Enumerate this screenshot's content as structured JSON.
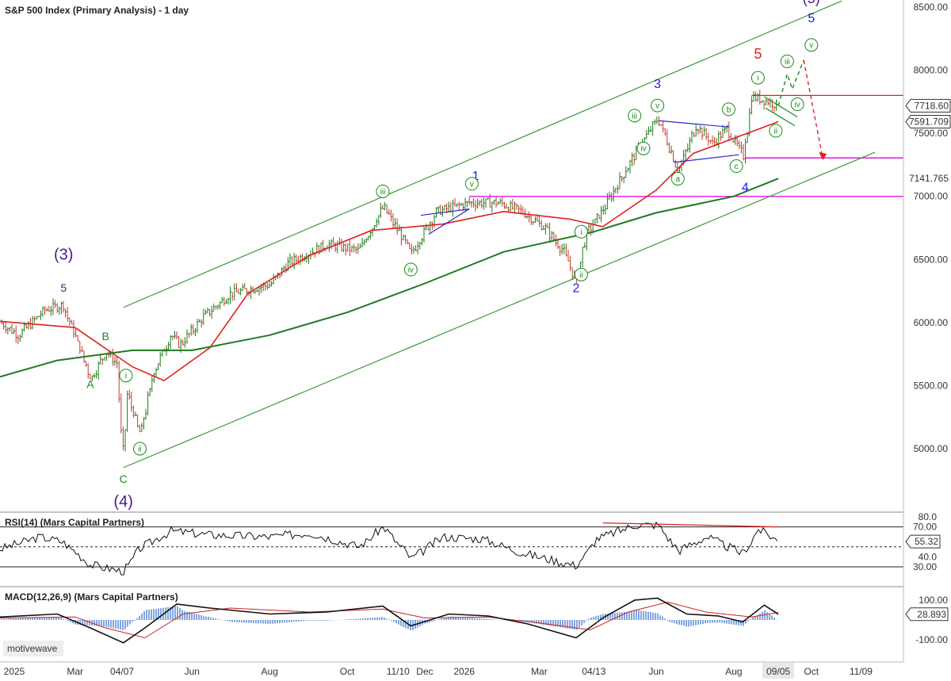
{
  "chart_title": "S&P 500 Index (Primary Analysis) - 1 day",
  "watermark": "motivewave",
  "colors": {
    "up_bar": "#1a7a1a",
    "down_bar": "#c0392b",
    "ma_fast": "#e02020",
    "ma_slow": "#1f7a1f",
    "channel": "#3a9a3a",
    "wave_green": "#1a8a1a",
    "wave_blue": "#1a1aee",
    "wave_red": "#e02020",
    "wave_purple": "#4b1a8a",
    "magenta": "#e000e0",
    "triangle_blue": "#2a2ad0"
  },
  "chart_data": [
    {
      "type": "ohlc",
      "title": "S&P 500 Index (Primary Analysis) - 1 day",
      "ylim": [
        4650,
        8550
      ],
      "yticks": [
        "8500.00",
        "8000.00",
        "7500.00",
        "7000.00",
        "6500.00",
        "6000.00",
        "5500.00",
        "5000.00"
      ],
      "xticks": [
        "2025",
        "Mar",
        "04/07",
        "Jun",
        "Aug",
        "Oct",
        "11/10",
        "Dec",
        "2026",
        "Mar",
        "04/13",
        "Jun",
        "Aug",
        "09/05",
        "Oct",
        "11/09"
      ],
      "price_tags": [
        "7718.60",
        "7591.709",
        "7141.765"
      ],
      "price_path": [
        [
          "2025-01-01",
          6000
        ],
        [
          "2025-01-15",
          5900
        ],
        [
          "2025-02-05",
          6100
        ],
        [
          "2025-02-19",
          6140
        ],
        [
          "2025-03-05",
          5780
        ],
        [
          "2025-03-13",
          5550
        ],
        [
          "2025-03-25",
          5770
        ],
        [
          "2025-04-02",
          5680
        ],
        [
          "2025-04-08",
          4850
        ],
        [
          "2025-04-10",
          5460
        ],
        [
          "2025-04-21",
          5100
        ],
        [
          "2025-05-01",
          5600
        ],
        [
          "2025-05-15",
          5900
        ],
        [
          "2025-05-22",
          5820
        ],
        [
          "2025-06-10",
          6050
        ],
        [
          "2025-07-01",
          6230
        ],
        [
          "2025-08-01",
          6300
        ],
        [
          "2025-08-15",
          6470
        ],
        [
          "2025-09-15",
          6620
        ],
        [
          "2025-10-10",
          6570
        ],
        [
          "2025-10-29",
          6920
        ],
        [
          "2025-11-20",
          6550
        ],
        [
          "2025-12-10",
          6880
        ],
        [
          "2026-01-05",
          6950
        ],
        [
          "2026-01-28",
          6950
        ],
        [
          "2026-02-15",
          6880
        ],
        [
          "2026-03-05",
          6750
        ],
        [
          "2026-03-20",
          6560
        ],
        [
          "2026-03-30",
          6320
        ],
        [
          "2026-04-06",
          6690
        ],
        [
          "2026-04-20",
          6900
        ],
        [
          "2026-05-10",
          7250
        ],
        [
          "2026-05-25",
          7500
        ],
        [
          "2026-06-02",
          7620
        ],
        [
          "2026-06-18",
          7200
        ],
        [
          "2026-07-02",
          7560
        ],
        [
          "2026-07-15",
          7420
        ],
        [
          "2026-07-26",
          7540
        ],
        [
          "2026-08-08",
          7320
        ],
        [
          "2026-08-15",
          7790
        ],
        [
          "2026-08-25",
          7760
        ],
        [
          "2026-09-05",
          7718.6
        ]
      ],
      "projection": [
        [
          "2026-09-05",
          7718.6
        ],
        [
          "2026-09-12",
          7970
        ],
        [
          "2026-09-16",
          7850
        ],
        [
          "2026-09-25",
          8080
        ],
        [
          "2026-10-10",
          7300
        ]
      ],
      "moving_averages": [
        {
          "values": [
            [
              "2025-01-01",
              6010
            ],
            [
              "2025-03-01",
              5960
            ],
            [
              "2025-04-15",
              5650
            ],
            [
              "2025-05-10",
              5540
            ],
            [
              "2025-06-15",
              5800
            ],
            [
              "2025-07-15",
              6230
            ],
            [
              "2025-09-01",
              6530
            ],
            [
              "2025-10-20",
              6730
            ],
            [
              "2025-12-15",
              6780
            ],
            [
              "2026-02-01",
              6880
            ],
            [
              "2026-03-25",
              6820
            ],
            [
              "2026-04-20",
              6760
            ],
            [
              "2026-06-01",
              7050
            ],
            [
              "2026-06-30",
              7340
            ],
            [
              "2026-08-01",
              7460
            ],
            [
              "2026-09-05",
              7591.709
            ]
          ]
        },
        {
          "values": [
            [
              "2025-01-01",
              5570
            ],
            [
              "2025-02-15",
              5700
            ],
            [
              "2025-04-15",
              5780
            ],
            [
              "2025-06-01",
              5780
            ],
            [
              "2025-08-01",
              5900
            ],
            [
              "2025-10-01",
              6080
            ],
            [
              "2025-12-01",
              6310
            ],
            [
              "2026-02-01",
              6560
            ],
            [
              "2026-04-13",
              6720
            ],
            [
              "2026-06-01",
              6870
            ],
            [
              "2026-08-01",
              7000
            ],
            [
              "2026-09-05",
              7141.765
            ]
          ]
        }
      ],
      "channel": {
        "upper": [
          [
            "2025-04-08",
            6120
          ],
          [
            "2026-10-25",
            8550
          ]
        ],
        "lower": [
          [
            "2025-04-08",
            4850
          ],
          [
            "2026-11-20",
            7350
          ]
        ]
      },
      "levels": [
        {
          "y": 7800,
          "from": "2026-08-15",
          "color": "red"
        },
        {
          "y": 7305,
          "from": "2026-08-10",
          "color": "magenta"
        },
        {
          "y": 7000,
          "from": "2026-01-05",
          "color": "magenta"
        }
      ],
      "wave_labels": [
        {
          "text": "(3)",
          "d": "2025-02-20",
          "y": 6500,
          "color": "purple",
          "size": 20
        },
        {
          "text": "5",
          "d": "2025-02-20",
          "y": 6245,
          "color": "purple",
          "size": 14
        },
        {
          "text": "B",
          "d": "2025-03-25",
          "y": 5860,
          "color": "green",
          "size": 14
        },
        {
          "text": "A",
          "d": "2025-03-13",
          "y": 5480,
          "color": "green",
          "size": 14
        },
        {
          "text": "C",
          "d": "2025-04-08",
          "y": 4730,
          "color": "green",
          "size": 14
        },
        {
          "text": "(4)",
          "d": "2025-04-08",
          "y": 4540,
          "color": "purple",
          "size": 20
        },
        {
          "text": "1",
          "d": "2026-01-10",
          "y": 7130,
          "color": "blue",
          "size": 16
        },
        {
          "text": "2",
          "d": "2026-03-30",
          "y": 6240,
          "color": "blue",
          "size": 16
        },
        {
          "text": "3",
          "d": "2026-06-02",
          "y": 7860,
          "color": "blue",
          "size": 16
        },
        {
          "text": "4",
          "d": "2026-08-10",
          "y": 7040,
          "color": "blue",
          "size": 16
        },
        {
          "text": "5",
          "d": "2026-08-20",
          "y": 8090,
          "color": "red",
          "size": 18
        },
        {
          "text": "5",
          "d": "2026-10-01",
          "y": 8380,
          "color": "blue",
          "size": 16
        },
        {
          "text": "(5)",
          "d": "2026-10-01",
          "y": 8530,
          "color": "purple",
          "size": 18
        }
      ],
      "circle_labels": [
        {
          "text": "i",
          "d": "2025-04-10",
          "y": 5580
        },
        {
          "text": "ii",
          "d": "2025-04-21",
          "y": 5000
        },
        {
          "text": "iii",
          "d": "2025-10-29",
          "y": 7040
        },
        {
          "text": "iv",
          "d": "2025-11-20",
          "y": 6420
        },
        {
          "text": "v",
          "d": "2026-01-07",
          "y": 7100
        },
        {
          "text": "i",
          "d": "2026-04-03",
          "y": 6720
        },
        {
          "text": "ii",
          "d": "2026-04-03",
          "y": 6380
        },
        {
          "text": "iii",
          "d": "2026-05-15",
          "y": 7640
        },
        {
          "text": "iv",
          "d": "2026-05-22",
          "y": 7380
        },
        {
          "text": "v",
          "d": "2026-06-02",
          "y": 7720
        },
        {
          "text": "a",
          "d": "2026-06-18",
          "y": 7140
        },
        {
          "text": "b",
          "d": "2026-07-28",
          "y": 7690
        },
        {
          "text": "c",
          "d": "2026-08-03",
          "y": 7240
        },
        {
          "text": "i",
          "d": "2026-08-20",
          "y": 7940
        },
        {
          "text": "ii",
          "d": "2026-09-03",
          "y": 7520
        },
        {
          "text": "iii",
          "d": "2026-09-12",
          "y": 8070
        },
        {
          "text": "iv",
          "d": "2026-09-20",
          "y": 7730
        },
        {
          "text": "v",
          "d": "2026-10-01",
          "y": 8200
        }
      ]
    },
    {
      "type": "line",
      "title": "RSI(14) (Mars Capital Partners)",
      "ylim": [
        30,
        80
      ],
      "yticks": [
        "80.0",
        "70.00",
        "40.0",
        "30.00"
      ],
      "bands": [
        70,
        30
      ],
      "midline": 50,
      "current": "55.32",
      "values": [
        [
          "2025-01-01",
          48
        ],
        [
          "2025-02-01",
          60
        ],
        [
          "2025-02-19",
          55
        ],
        [
          "2025-03-13",
          32
        ],
        [
          "2025-04-08",
          25
        ],
        [
          "2025-04-20",
          48
        ],
        [
          "2025-05-15",
          66
        ],
        [
          "2025-06-15",
          62
        ],
        [
          "2025-08-01",
          60
        ],
        [
          "2025-09-01",
          64
        ],
        [
          "2025-10-10",
          50
        ],
        [
          "2025-10-29",
          70
        ],
        [
          "2025-11-20",
          38
        ],
        [
          "2025-12-15",
          60
        ],
        [
          "2026-01-15",
          58
        ],
        [
          "2026-02-15",
          44
        ],
        [
          "2026-03-30",
          31
        ],
        [
          "2026-04-15",
          58
        ],
        [
          "2026-05-15",
          72
        ],
        [
          "2026-06-02",
          72
        ],
        [
          "2026-06-18",
          46
        ],
        [
          "2026-07-10",
          60
        ],
        [
          "2026-08-08",
          43
        ],
        [
          "2026-08-20",
          68
        ],
        [
          "2026-09-05",
          55.32
        ]
      ],
      "divergence": [
        [
          "2026-04-20",
          74
        ],
        [
          "2026-09-05",
          70
        ]
      ]
    },
    {
      "type": "line",
      "title": "MACD(12,26,9) (Mars Capital Partners)",
      "ylim": [
        -140,
        140
      ],
      "yticks": [
        "100.00",
        "-100.00"
      ],
      "current": "28.893",
      "values": [
        [
          "2025-01-01",
          15
        ],
        [
          "2025-02-15",
          30
        ],
        [
          "2025-03-13",
          -40
        ],
        [
          "2025-04-08",
          -115
        ],
        [
          "2025-04-25",
          -40
        ],
        [
          "2025-05-20",
          80
        ],
        [
          "2025-06-15",
          60
        ],
        [
          "2025-08-01",
          30
        ],
        [
          "2025-09-15",
          40
        ],
        [
          "2025-10-29",
          70
        ],
        [
          "2025-11-20",
          -30
        ],
        [
          "2025-12-20",
          30
        ],
        [
          "2026-01-20",
          20
        ],
        [
          "2026-02-20",
          -20
        ],
        [
          "2026-03-30",
          -90
        ],
        [
          "2026-04-20",
          10
        ],
        [
          "2026-05-15",
          100
        ],
        [
          "2026-06-02",
          110
        ],
        [
          "2026-06-25",
          30
        ],
        [
          "2026-07-20",
          20
        ],
        [
          "2026-08-08",
          -10
        ],
        [
          "2026-08-25",
          75
        ],
        [
          "2026-09-05",
          28.893
        ]
      ],
      "signal": [
        [
          "2025-01-01",
          10
        ],
        [
          "2025-03-01",
          15
        ],
        [
          "2025-03-25",
          -40
        ],
        [
          "2025-04-25",
          -90
        ],
        [
          "2025-05-25",
          30
        ],
        [
          "2025-07-01",
          60
        ],
        [
          "2025-09-01",
          40
        ],
        [
          "2025-10-29",
          55
        ],
        [
          "2025-12-01",
          10
        ],
        [
          "2026-01-20",
          15
        ],
        [
          "2026-03-01",
          -15
        ],
        [
          "2026-04-10",
          -50
        ],
        [
          "2026-05-10",
          40
        ],
        [
          "2026-06-10",
          90
        ],
        [
          "2026-07-10",
          40
        ],
        [
          "2026-08-15",
          15
        ],
        [
          "2026-09-05",
          38
        ]
      ]
    }
  ]
}
